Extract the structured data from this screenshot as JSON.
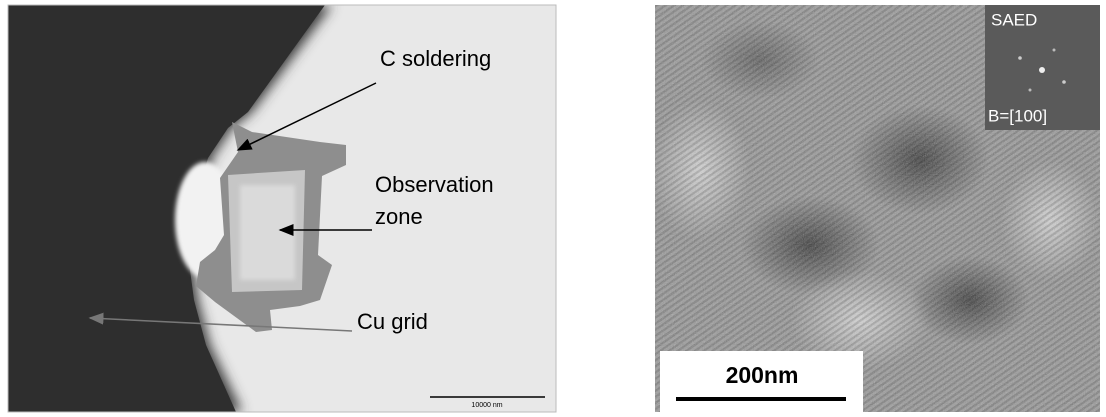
{
  "left_panel": {
    "labels": {
      "c_soldering": "C soldering",
      "observation_zone": [
        "Observation",
        "zone"
      ],
      "cu_grid": "Cu grid"
    },
    "scale_bar": "10000 nm"
  },
  "right_panel": {
    "inset": {
      "title": "SAED",
      "zone_axis": "B=[100]"
    },
    "scale_bar": "200nm"
  }
}
